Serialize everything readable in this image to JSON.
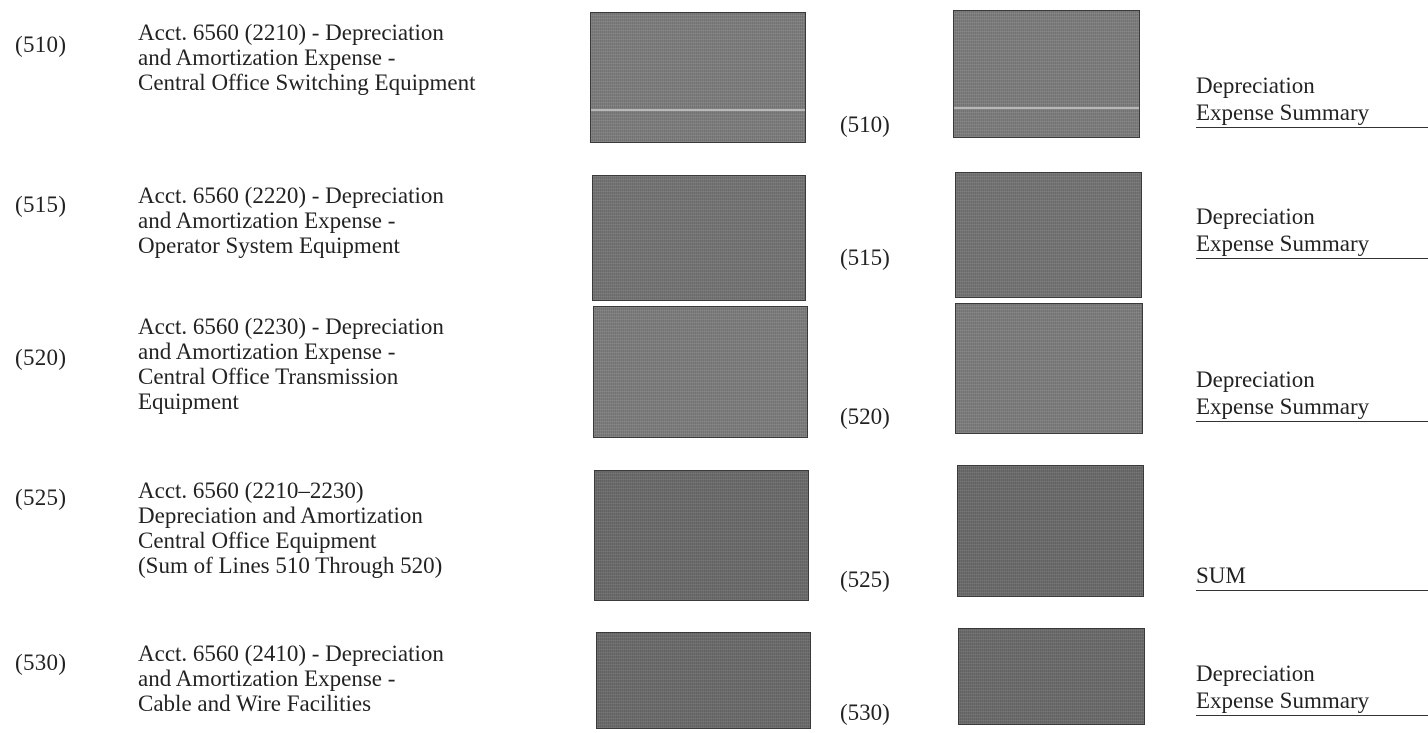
{
  "rows": [
    {
      "line": "(510)",
      "desc": [
        "Acct. 6560 (2210) - Depreciation",
        "and Amortization Expense -",
        "Central Office Switching Equipment"
      ],
      "ref": "(510)",
      "source": [
        "Depreciation",
        "Expense Summary"
      ]
    },
    {
      "line": "(515)",
      "desc": [
        "Acct. 6560 (2220) - Depreciation",
        "and Amortization Expense -",
        "Operator System Equipment"
      ],
      "ref": "(515)",
      "source": [
        "Depreciation",
        "Expense Summary"
      ]
    },
    {
      "line": "(520)",
      "desc": [
        "Acct. 6560 (2230) - Depreciation",
        "and Amortization Expense -",
        "Central Office Transmission",
        "Equipment"
      ],
      "ref": "(520)",
      "source": [
        "Depreciation",
        "Expense Summary"
      ]
    },
    {
      "line": "(525)",
      "desc": [
        "Acct. 6560 (2210–2230)",
        "Depreciation and Amortization",
        "Central Office Equipment",
        "(Sum of Lines 510 Through 520)"
      ],
      "ref": "(525)",
      "source": [
        "",
        "SUM"
      ]
    },
    {
      "line": "(530)",
      "desc": [
        "Acct. 6560 (2410) - Depreciation",
        "and Amortization Expense -",
        "Cable and Wire Facilities"
      ],
      "ref": "(530)",
      "source": [
        "Depreciation",
        "Expense Summary"
      ]
    }
  ],
  "colors": {
    "redaction": "#7d7d7d",
    "text": "#222222",
    "rule": "#333333"
  }
}
